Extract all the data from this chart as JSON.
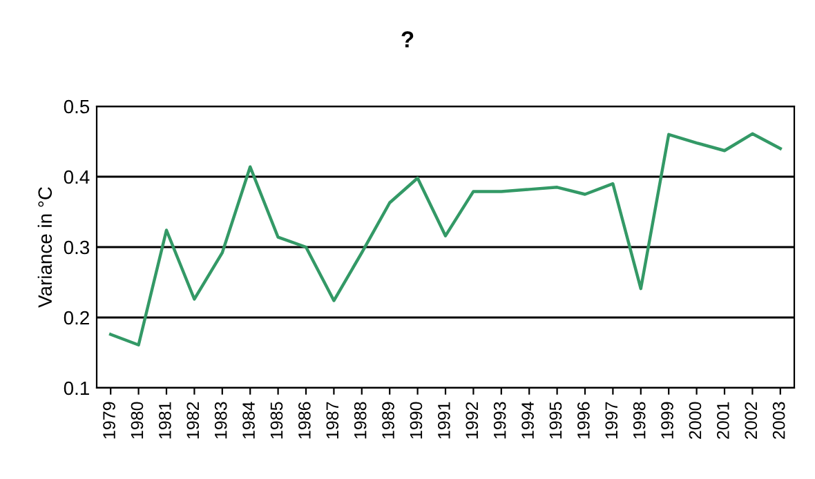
{
  "chart_data": {
    "type": "line",
    "title": "?",
    "ylabel": "Variance in °C",
    "categories": [
      "1979",
      "1980",
      "1981",
      "1982",
      "1983",
      "1984",
      "1985",
      "1986",
      "1987",
      "1988",
      "1989",
      "1990",
      "1991",
      "1992",
      "1993",
      "1994",
      "1995",
      "1996",
      "1997",
      "1998",
      "1999",
      "2000",
      "2001",
      "2002",
      "2003"
    ],
    "series": [
      {
        "color": "#339966",
        "values": [
          0.176,
          0.161,
          0.324,
          0.226,
          0.292,
          0.414,
          0.314,
          0.3,
          0.224,
          0.292,
          0.363,
          0.398,
          0.316,
          0.379,
          0.379,
          0.382,
          0.385,
          0.375,
          0.39,
          0.241,
          0.46,
          0.448,
          0.437,
          0.461,
          0.44
        ]
      }
    ],
    "ylim": [
      0.1,
      0.5
    ],
    "yticks": [
      0.1,
      0.2,
      0.3,
      0.4,
      0.5
    ],
    "grid": "y",
    "legend": false,
    "marker": "none",
    "line_style": "solid"
  }
}
